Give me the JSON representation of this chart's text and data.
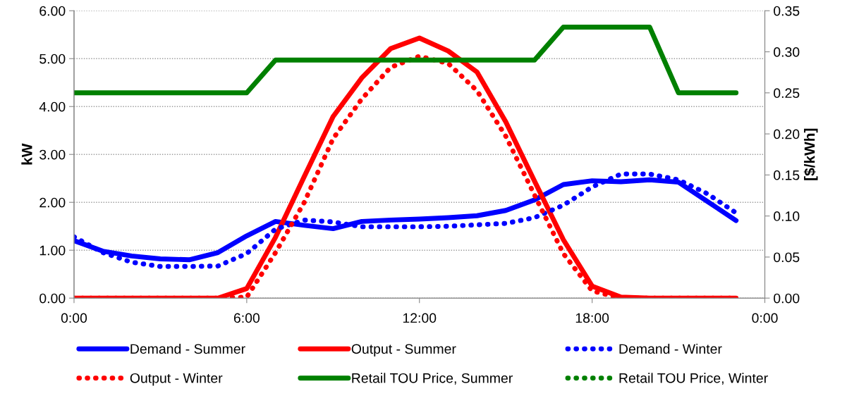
{
  "chart_data": {
    "type": "line",
    "ylabel": "kW",
    "y2label": "[$/kWh]",
    "x": [
      0,
      1,
      2,
      3,
      4,
      5,
      6,
      7,
      8,
      9,
      10,
      11,
      12,
      13,
      14,
      15,
      16,
      17,
      18,
      19,
      20,
      21,
      22,
      23
    ],
    "xlim": [
      0,
      24
    ],
    "xticks": [
      {
        "value": 0,
        "label": "0:00"
      },
      {
        "value": 6,
        "label": "6:00"
      },
      {
        "value": 12,
        "label": "12:00"
      },
      {
        "value": 18,
        "label": "18:00"
      },
      {
        "value": 24,
        "label": "0:00"
      }
    ],
    "ylim": [
      0,
      6
    ],
    "yticks": [
      {
        "value": 0,
        "label": "0.00"
      },
      {
        "value": 1,
        "label": "1.00"
      },
      {
        "value": 2,
        "label": "2.00"
      },
      {
        "value": 3,
        "label": "3.00"
      },
      {
        "value": 4,
        "label": "4.00"
      },
      {
        "value": 5,
        "label": "5.00"
      },
      {
        "value": 6,
        "label": "6.00"
      }
    ],
    "y2lim": [
      0,
      0.35
    ],
    "y2ticks": [
      {
        "value": 0,
        "label": "0.00"
      },
      {
        "value": 0.05,
        "label": "0.05"
      },
      {
        "value": 0.1,
        "label": "0.10"
      },
      {
        "value": 0.15,
        "label": "0.15"
      },
      {
        "value": 0.2,
        "label": "0.20"
      },
      {
        "value": 0.25,
        "label": "0.25"
      },
      {
        "value": 0.3,
        "label": "0.30"
      },
      {
        "value": 0.35,
        "label": "0.35"
      }
    ],
    "grid": "y",
    "legend": "bottom",
    "marker": "none",
    "series": [
      {
        "name": "Demand - Summer",
        "color": "#0000ff",
        "line_style": "solid",
        "values": [
          1.2,
          0.98,
          0.88,
          0.82,
          0.8,
          0.95,
          1.3,
          1.6,
          1.52,
          1.45,
          1.6,
          1.63,
          1.65,
          1.68,
          1.72,
          1.83,
          2.05,
          2.37,
          2.45,
          2.43,
          2.47,
          2.42,
          2.02,
          1.62
        ]
      },
      {
        "name": "Output - Summer",
        "color": "#ff0000",
        "line_style": "solid",
        "values": [
          0,
          0,
          0,
          0,
          0,
          0,
          0.2,
          1.27,
          2.54,
          3.79,
          4.6,
          5.21,
          5.43,
          5.16,
          4.72,
          3.68,
          2.44,
          1.22,
          0.25,
          0.02,
          0,
          0,
          0,
          0
        ]
      },
      {
        "name": "Demand - Winter",
        "color": "#0000ff",
        "line_style": "dotted",
        "values": [
          1.28,
          0.95,
          0.75,
          0.66,
          0.66,
          0.67,
          0.93,
          1.44,
          1.63,
          1.59,
          1.49,
          1.49,
          1.49,
          1.5,
          1.53,
          1.56,
          1.68,
          1.94,
          2.32,
          2.59,
          2.59,
          2.47,
          2.18,
          1.78
        ]
      },
      {
        "name": "Output - Winter",
        "color": "#ff0000",
        "line_style": "dotted",
        "values": [
          0,
          0,
          0,
          0,
          0,
          0,
          0.02,
          0.95,
          2.0,
          3.33,
          4.16,
          4.82,
          5.05,
          4.9,
          4.33,
          3.38,
          2.15,
          0.93,
          0.15,
          0,
          0,
          0,
          0,
          0
        ]
      },
      {
        "name": "Retail TOU Price, Summer",
        "color": "#008000",
        "line_style": "solid",
        "axis": "y2",
        "values": [
          0.25,
          0.25,
          0.25,
          0.25,
          0.25,
          0.25,
          0.25,
          0.29,
          0.29,
          0.29,
          0.29,
          0.29,
          0.29,
          0.29,
          0.29,
          0.29,
          0.29,
          0.33,
          0.33,
          0.33,
          0.33,
          0.25,
          0.25,
          0.25
        ]
      },
      {
        "name": "Retail TOU Price, Winter",
        "color": "#008000",
        "line_style": "dotted",
        "axis": "y2",
        "values": [
          null,
          null,
          null,
          null,
          null,
          null,
          null,
          null,
          null,
          null,
          null,
          null,
          null,
          null,
          null,
          null,
          null,
          null,
          null,
          null,
          null,
          null,
          null,
          null
        ]
      }
    ]
  }
}
